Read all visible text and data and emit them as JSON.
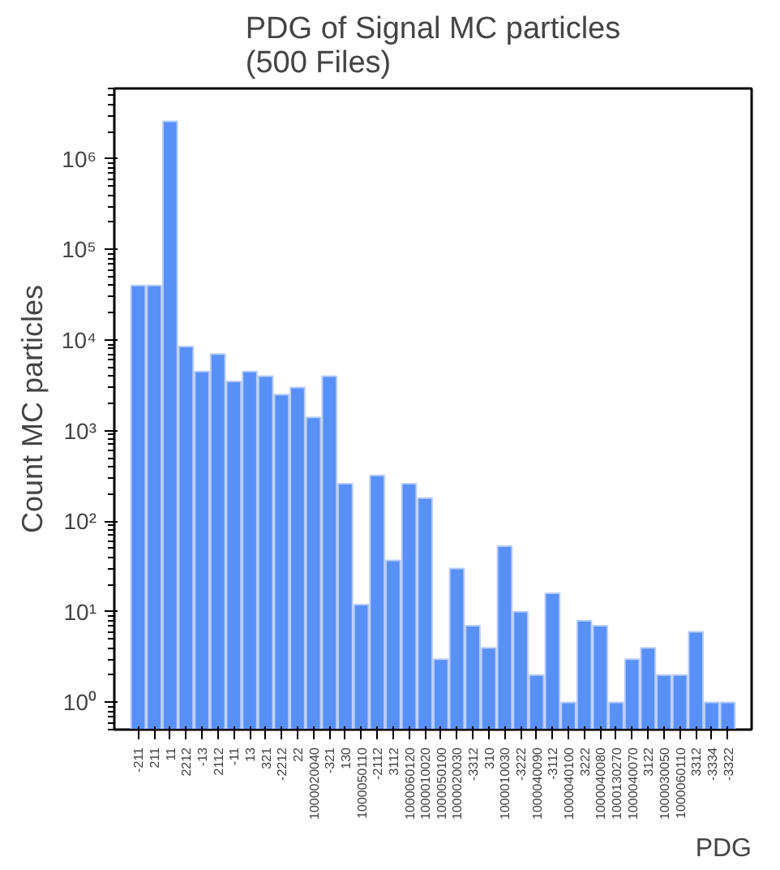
{
  "chart_data": {
    "type": "bar",
    "title": "PDG of Signal MC particles\n(500 Files)",
    "xlabel": "PDG",
    "ylabel": "Count MC particles",
    "color": "#5890f7",
    "log": "y",
    "grid": false,
    "categories": [
      "-211",
      "211",
      "11",
      "2212",
      "-13",
      "2112",
      "-11",
      "13",
      "321",
      "-2212",
      "22",
      "1000020040",
      "-321",
      "130",
      "1000050110",
      "-2112",
      "3112",
      "1000060120",
      "1000010020",
      "1000050100",
      "1000020030",
      "-3312",
      "310",
      "1000010030",
      "-3222",
      "1000040090",
      "-3112",
      "1000040100",
      "3222",
      "1000040080",
      "1000130270",
      "1000040070",
      "3122",
      "1000030050",
      "1000060110",
      "3312",
      "-3334",
      "-3322"
    ],
    "values": [
      40000,
      40000,
      2600000,
      8500,
      4500,
      7000,
      3500,
      4500,
      4000,
      2500,
      3000,
      1400,
      4000,
      260,
      12,
      320,
      37,
      260,
      180,
      3,
      30,
      7,
      4,
      53,
      10,
      2,
      16,
      1,
      8,
      7,
      1,
      3,
      4,
      2,
      2,
      6,
      1,
      1
    ],
    "ylim": [
      0.5,
      6000000
    ],
    "yticks": [
      {
        "value": 1,
        "label": "10⁰"
      },
      {
        "value": 10,
        "label": "10¹"
      },
      {
        "value": 100,
        "label": "10²"
      },
      {
        "value": 1000,
        "label": "10³"
      },
      {
        "value": 10000,
        "label": "10⁴"
      },
      {
        "value": 100000,
        "label": "10⁵"
      },
      {
        "value": 1000000,
        "label": "10⁶"
      }
    ]
  }
}
